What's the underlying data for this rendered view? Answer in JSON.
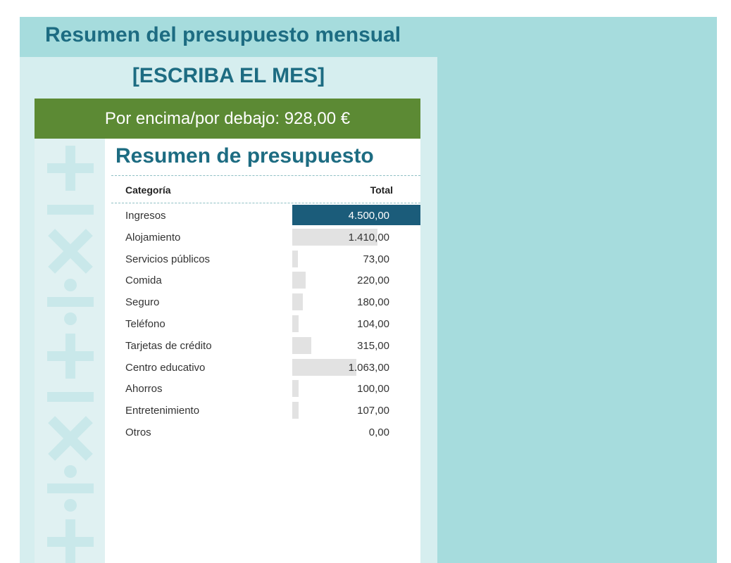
{
  "header": {
    "title": "Resumen del presupuesto mensual",
    "month_placeholder": "[ESCRIBA EL MES]"
  },
  "banner": {
    "text": "Por encima/por debajo: 928,00 €"
  },
  "summary": {
    "title": "Resumen de presupuesto",
    "column_category": "Categoría",
    "column_total": "Total",
    "max_value": 4500,
    "rows": [
      {
        "label": "Ingresos",
        "value": "4.500,00",
        "amount": 4500,
        "highlight": true
      },
      {
        "label": "Alojamiento",
        "value": "1.410,00",
        "amount": 1410
      },
      {
        "label": "Servicios públicos",
        "value": "73,00",
        "amount": 73
      },
      {
        "label": "Comida",
        "value": "220,00",
        "amount": 220
      },
      {
        "label": "Seguro",
        "value": "180,00",
        "amount": 180
      },
      {
        "label": "Teléfono",
        "value": "104,00",
        "amount": 104
      },
      {
        "label": "Tarjetas de crédito",
        "value": "315,00",
        "amount": 315
      },
      {
        "label": "Centro educativo",
        "value": "1.063,00",
        "amount": 1063
      },
      {
        "label": "Ahorros",
        "value": "100,00",
        "amount": 100
      },
      {
        "label": "Entretenimiento",
        "value": "107,00",
        "amount": 107
      },
      {
        "label": "Otros",
        "value": "0,00",
        "amount": 0
      }
    ]
  },
  "colors": {
    "title_text": "#1d6c82",
    "banner_green": "#5c8a34",
    "highlight_bar": "#1b5c7a",
    "bar_gray": "#e2e2e2",
    "background_teal": "#a6dcdd"
  },
  "decoration_icons": [
    "plus-icon",
    "minus-icon",
    "multiply-icon",
    "divide-icon"
  ]
}
